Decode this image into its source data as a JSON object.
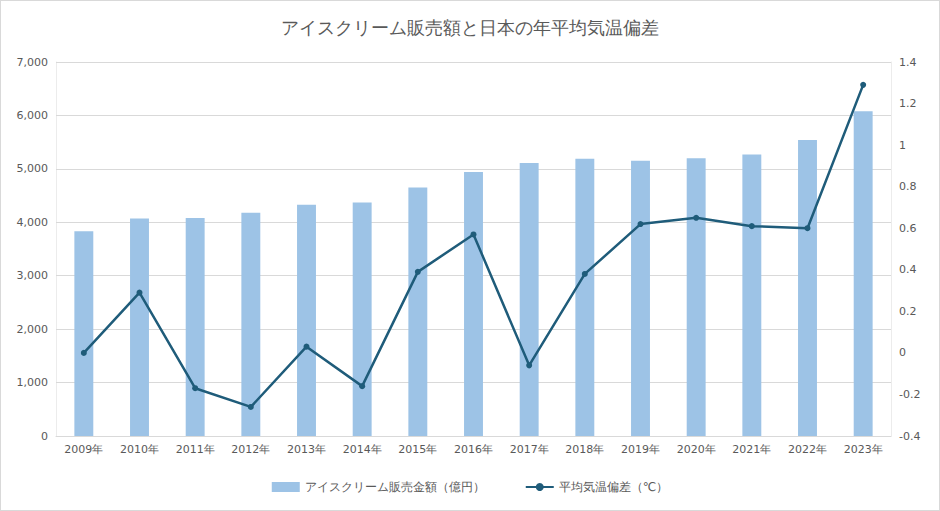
{
  "chart_data": {
    "type": "bar",
    "title": "アイスクリーム販売額と日本の年平均気温偏差",
    "categories": [
      "2009年",
      "2010年",
      "2011年",
      "2012年",
      "2013年",
      "2014年",
      "2015年",
      "2016年",
      "2017年",
      "2018年",
      "2019年",
      "2020年",
      "2021年",
      "2022年",
      "2023年"
    ],
    "series": [
      {
        "name": "アイスクリーム販売金額（億円）",
        "type": "bar",
        "color": "#9dc3e6",
        "values": [
          3830,
          4070,
          4080,
          4180,
          4330,
          4370,
          4650,
          4940,
          5110,
          5190,
          5150,
          5200,
          5270,
          5540,
          6080
        ]
      },
      {
        "name": "平均気温偏差（℃）",
        "type": "line",
        "axis": "y2",
        "color": "#1f5c7a",
        "marker": "circle",
        "values": [
          0.0,
          0.29,
          -0.17,
          -0.26,
          0.03,
          -0.16,
          0.39,
          0.57,
          -0.06,
          0.38,
          0.62,
          0.65,
          0.61,
          0.6,
          1.29
        ]
      }
    ],
    "ylim": [
      0,
      7000
    ],
    "yticks": [
      0,
      {
        "value": 1000,
        "label": "1,000"
      },
      {
        "value": 2000,
        "label": "2,000"
      },
      {
        "value": 3000,
        "label": "3,000"
      },
      {
        "value": 4000,
        "label": "4,000"
      },
      {
        "value": 5000,
        "label": "5,000"
      },
      {
        "value": 6000,
        "label": "6,000"
      },
      {
        "value": 7000,
        "label": "7,000"
      }
    ],
    "y2lim": [
      -0.4,
      1.4
    ],
    "y2ticks": [
      -0.4,
      -0.2,
      0,
      0.2,
      0.4,
      0.6,
      0.8,
      1,
      1.2,
      1.4
    ],
    "grid": true,
    "legend": "bottom"
  }
}
